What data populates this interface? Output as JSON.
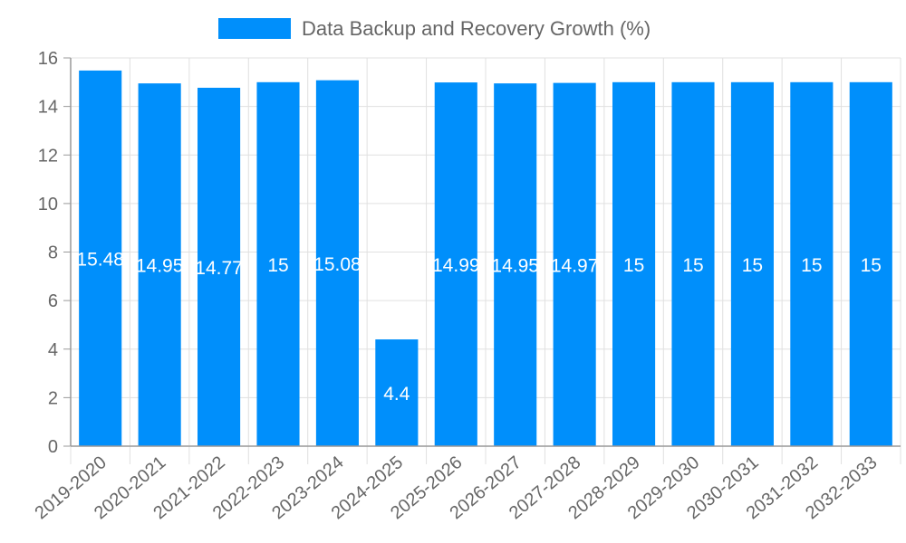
{
  "chart_data": {
    "type": "bar",
    "title": "",
    "xlabel": "",
    "ylabel": "",
    "ylim": [
      0,
      16
    ],
    "yticks": [
      0,
      2,
      4,
      6,
      8,
      10,
      12,
      14,
      16
    ],
    "grid": true,
    "legend_position": "top",
    "categories": [
      "2019-2020",
      "2020-2021",
      "2021-2022",
      "2022-2023",
      "2023-2024",
      "2024-2025",
      "2025-2026",
      "2026-2027",
      "2027-2028",
      "2028-2029",
      "2029-2030",
      "2030-2031",
      "2031-2032",
      "2032-2033"
    ],
    "series": [
      {
        "name": "Data Backup and Recovery Growth (%)",
        "color": "#008ffb",
        "values": [
          15.48,
          14.95,
          14.77,
          15,
          15.08,
          4.4,
          14.99,
          14.95,
          14.97,
          15,
          15,
          15,
          15,
          15
        ]
      }
    ]
  },
  "colors": {
    "bar": "#008ffb",
    "grid": "#e0e0e0",
    "axis": "#999999",
    "text": "#666666"
  }
}
